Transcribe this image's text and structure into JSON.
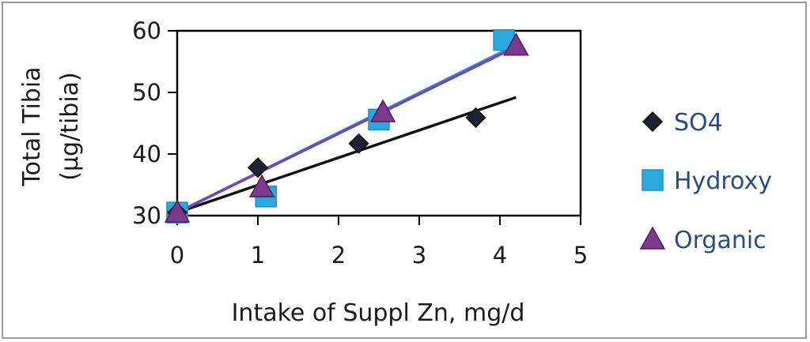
{
  "chart_data": {
    "type": "scatter",
    "xlabel": "Intake of Suppl Zn, mg/d",
    "ylabel_lines": [
      "Total Tibia",
      "(µg/tibia)"
    ],
    "xlim": [
      0,
      5
    ],
    "ylim": [
      30,
      60
    ],
    "x_ticks": [
      "0",
      "1",
      "2",
      "3",
      "4",
      "5"
    ],
    "y_ticks": [
      "30",
      "40",
      "50",
      "60"
    ],
    "legend_position": "right",
    "series": [
      {
        "name": "SO4",
        "marker": "diamond",
        "color": "#1c2330",
        "points": [
          [
            0,
            30.5
          ],
          [
            1,
            37.8
          ],
          [
            2.25,
            41.7
          ],
          [
            3.7,
            45.9
          ]
        ],
        "trendline": {
          "x": [
            0,
            4.2
          ],
          "y": [
            30.5,
            49.2
          ],
          "color": "#111111"
        }
      },
      {
        "name": "Hydroxy",
        "marker": "square",
        "color": "#29a9de",
        "points": [
          [
            0,
            30.5
          ],
          [
            1.1,
            33.1
          ],
          [
            2.5,
            45.6
          ],
          [
            4.05,
            58.5
          ]
        ],
        "trendline": {
          "x": [
            0,
            4.2
          ],
          "y": [
            30.5,
            57.7
          ],
          "color": "#3a8fd0"
        }
      },
      {
        "name": "Organic",
        "marker": "triangle",
        "color": "#7d3a8c",
        "points": [
          [
            0,
            30.5
          ],
          [
            1.05,
            34.6
          ],
          [
            2.55,
            46.8
          ],
          [
            4.2,
            57.6
          ]
        ],
        "trendline": {
          "x": [
            0,
            4.2
          ],
          "y": [
            30.5,
            57.4
          ],
          "color": "#6f4ab0"
        }
      }
    ]
  }
}
